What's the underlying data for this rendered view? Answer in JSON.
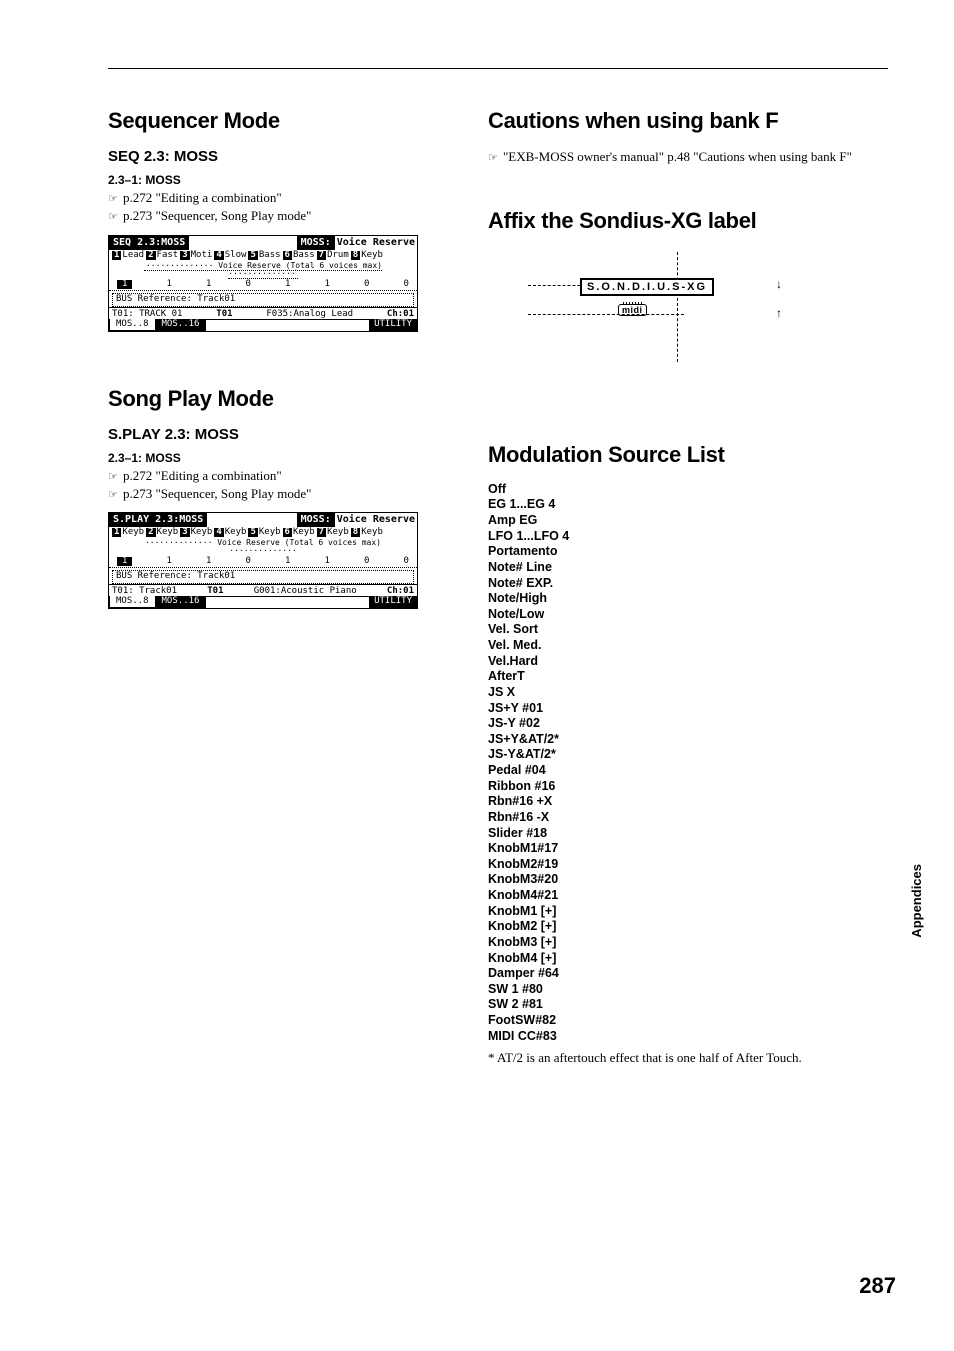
{
  "left": {
    "seq": {
      "h1": "Sequencer Mode",
      "h2": "SEQ 2.3: MOSS",
      "h3": "2.3–1: MOSS",
      "ref1": "p.272 \"Editing a combination\"",
      "ref2": "p.273 \"Sequencer, Song Play mode\"",
      "lcd": {
        "titleL": "SEQ 2.3:MOSS",
        "titleR1": "MOSS:",
        "titleR2": "Voice Reserve",
        "cats": [
          "Lead",
          "Fast",
          "Moti",
          "Slow",
          "Bass",
          "Bass",
          "Drum",
          "Keyb"
        ],
        "nums": [
          "1",
          "2",
          "3",
          "4",
          "5",
          "6",
          "7",
          "8"
        ],
        "reserve_cap": "Voice Reserve (Total 6 voices max)",
        "vals": [
          "1",
          "1",
          "1",
          "0",
          "1",
          "1",
          "0",
          "0"
        ],
        "busref": "BUS Reference: Track01",
        "trackL": "T01: TRACK 01",
        "trackM": "T01",
        "trackR": "F035:Analog Lead",
        "ch": "Ch:01",
        "tab1": "MOS..8",
        "tab2": "MOS..16",
        "util": "UTILITY"
      }
    },
    "song": {
      "h1": "Song Play Mode",
      "h2": "S.PLAY 2.3: MOSS",
      "h3": "2.3–1: MOSS",
      "ref1": "p.272 \"Editing a combination\"",
      "ref2": "p.273 \"Sequencer, Song Play mode\"",
      "lcd": {
        "titleL": "S.PLAY 2.3:MOSS",
        "titleR1": "MOSS:",
        "titleR2": "Voice Reserve",
        "cats": [
          "Keyb",
          "Keyb",
          "Keyb",
          "Keyb",
          "Keyb",
          "Keyb",
          "Keyb",
          "Keyb"
        ],
        "nums": [
          "1",
          "2",
          "3",
          "4",
          "5",
          "6",
          "7",
          "8"
        ],
        "reserve_cap": "Voice Reserve (Total 6 voices max)",
        "vals": [
          "1",
          "1",
          "1",
          "0",
          "1",
          "1",
          "0",
          "0"
        ],
        "busref": "BUS Reference: Track01",
        "trackL": "T01: Track01",
        "trackM": "T01",
        "trackR": "G001:Acoustic Piano",
        "ch": "Ch:01",
        "tab1": "MOS..8",
        "tab2": "MOS..16",
        "util": "UTILITY"
      }
    }
  },
  "right": {
    "cautions_h": "Cautions when using bank F",
    "cautions_ref": "\"EXB-MOSS owner's manual\" p.48 \"Cautions when using bank F\"",
    "affix_h": "Affix the Sondius-XG label",
    "sondius_text": "S.O.N.D.I.U.S-XG",
    "midi_text": "midi",
    "mod_h": "Modulation Source List",
    "mod_items": [
      "Off",
      "EG 1...EG 4",
      "Amp EG",
      "LFO 1...LFO 4",
      "Portamento",
      "Note# Line",
      "Note# EXP.",
      "Note/High",
      "Note/Low",
      "Vel. Sort",
      "Vel. Med.",
      "Vel.Hard",
      "AfterT",
      "JS X",
      "JS+Y #01",
      "JS-Y #02",
      "JS+Y&AT/2*",
      "JS-Y&AT/2*",
      "Pedal #04",
      "Ribbon #16",
      "Rbn#16 +X",
      "Rbn#16 -X",
      "Slider #18",
      "KnobM1#17",
      "KnobM2#19",
      "KnobM3#20",
      "KnobM4#21",
      "KnobM1 [+]",
      "KnobM2 [+]",
      "KnobM3 [+]",
      "KnobM4 [+]",
      "Damper #64",
      "SW 1 #80",
      "SW 2 #81",
      "FootSW#82",
      "MIDI CC#83"
    ],
    "footnote": "*   AT/2 is an aftertouch effect that is one half of After Touch."
  },
  "side_tab": "Appendices",
  "page_num": "287",
  "hand": "☞"
}
